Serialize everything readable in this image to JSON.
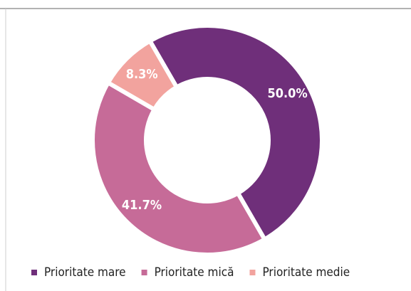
{
  "chart_data": {
    "type": "donut",
    "categories": [
      "Prioritate mare",
      "Prioritate mică",
      "Prioritate medie"
    ],
    "values": [
      50.0,
      41.7,
      8.3
    ],
    "value_labels": [
      "50.0%",
      "41.7%",
      "8.3%"
    ],
    "colors": [
      "#6f2f7a",
      "#c66b98",
      "#f2a39e"
    ],
    "legend": "bottom"
  }
}
